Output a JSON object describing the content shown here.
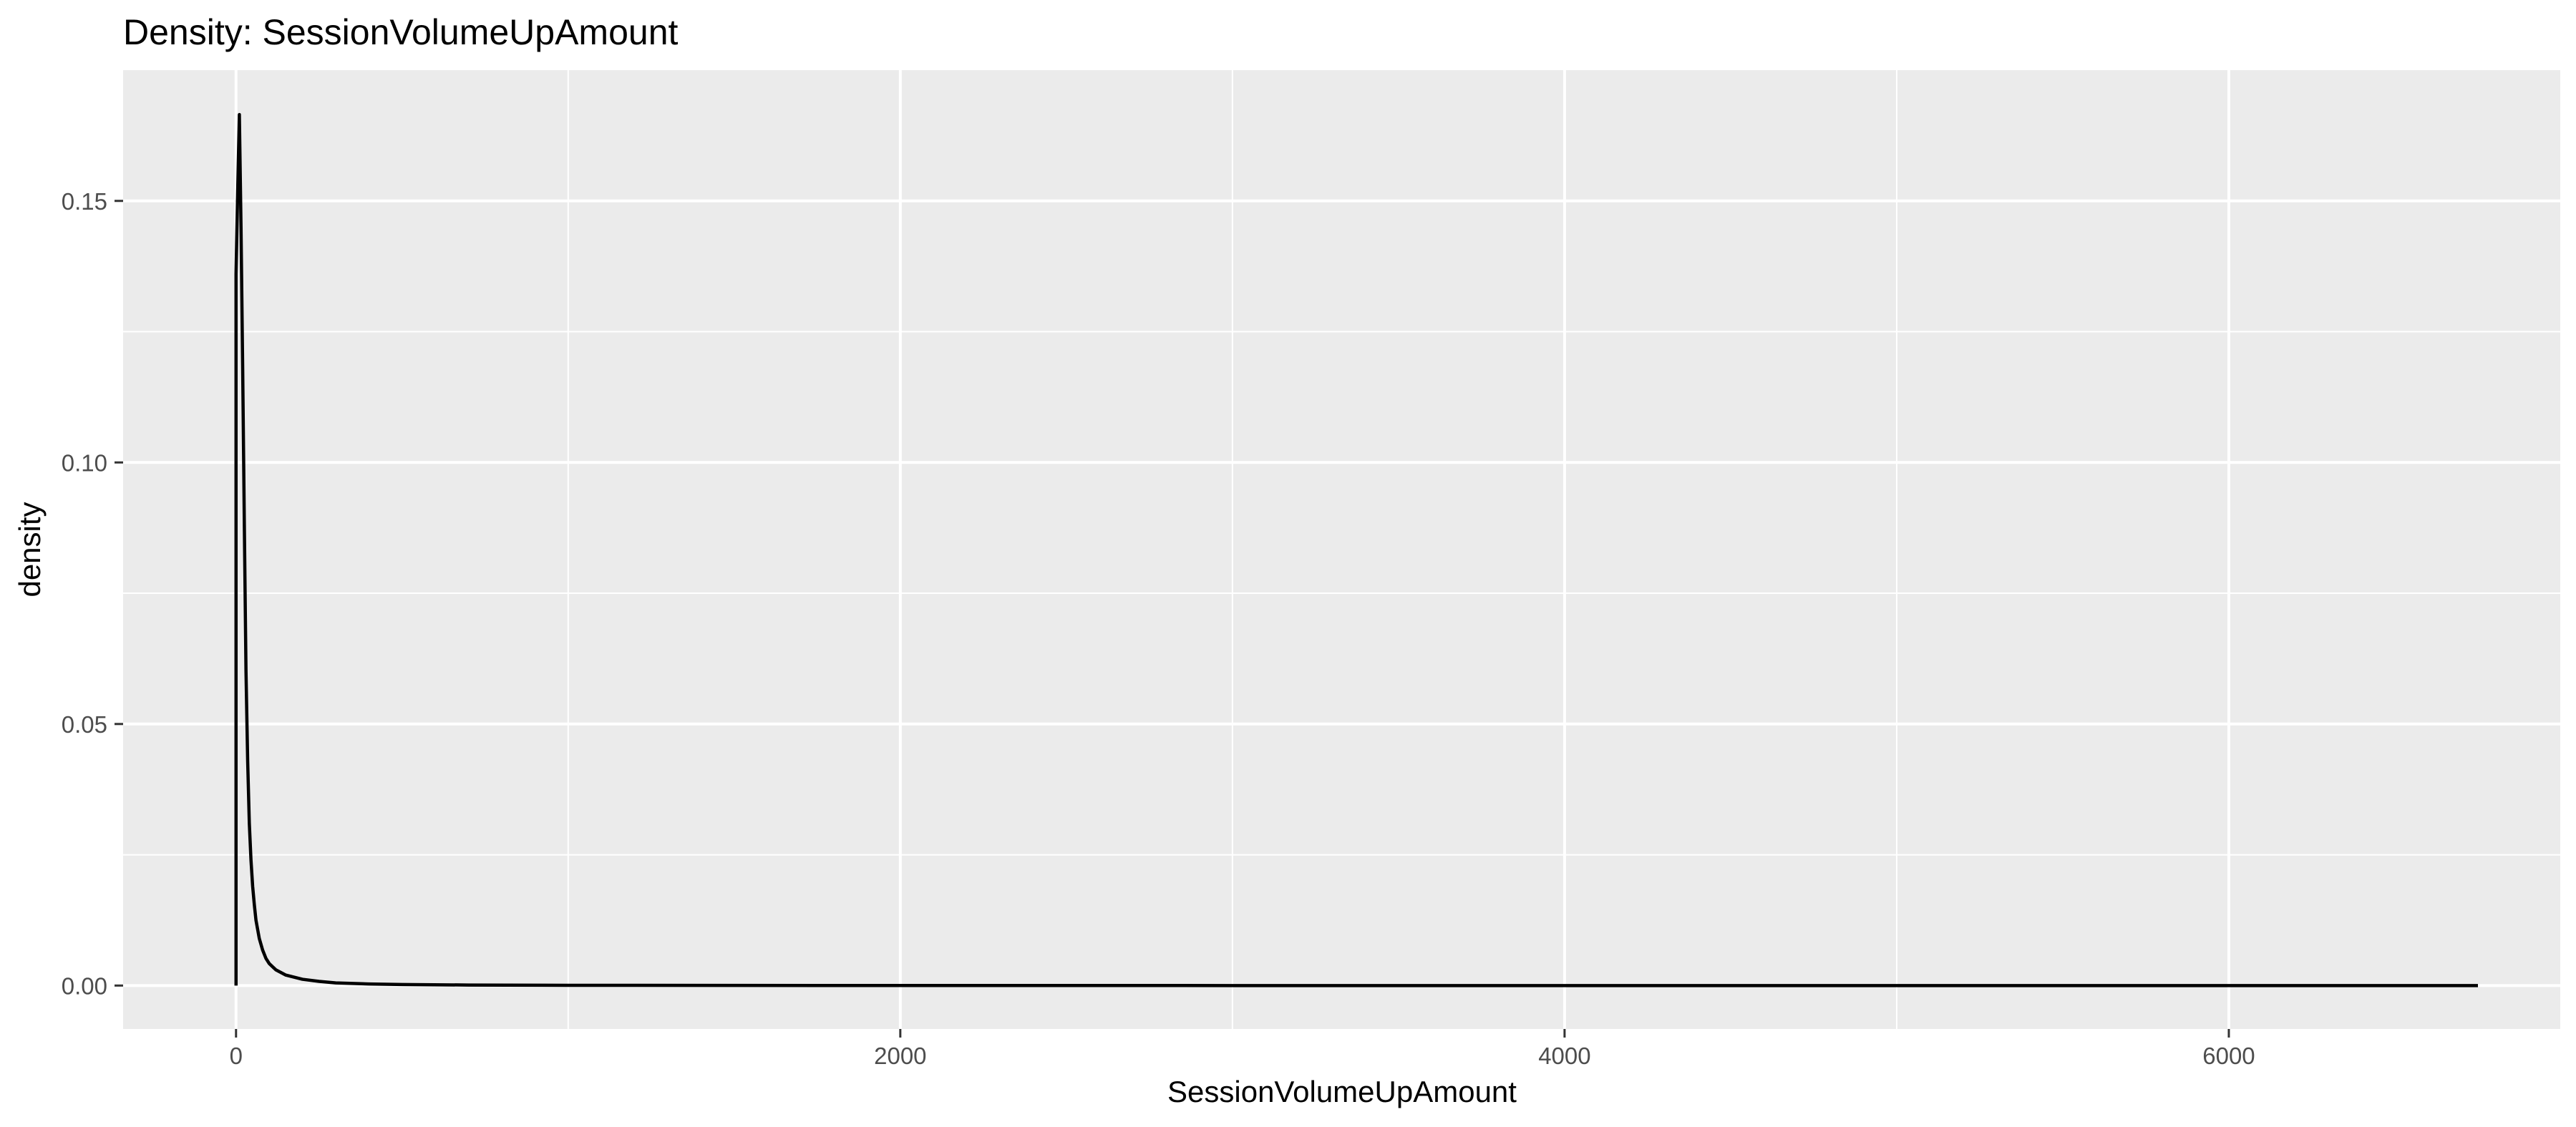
{
  "chart_data": {
    "type": "line",
    "title": "Density: SessionVolumeUpAmount",
    "xlabel": "SessionVolumeUpAmount",
    "ylabel": "density",
    "xlim": [
      -340,
      7000
    ],
    "ylim": [
      -0.0083,
      0.175
    ],
    "x_ticks": [
      0,
      2000,
      4000,
      6000
    ],
    "x_tick_labels": [
      "0",
      "2000",
      "4000",
      "6000"
    ],
    "x_minor_ticks": [
      1000,
      3000,
      5000,
      7000
    ],
    "y_ticks": [
      0.0,
      0.05,
      0.1,
      0.15
    ],
    "y_tick_labels": [
      "0.00",
      "0.05",
      "0.10",
      "0.15"
    ],
    "y_minor_ticks": [
      0.025,
      0.075,
      0.125
    ],
    "grid": true,
    "background": "#ebebeb",
    "grid_color": "#ffffff",
    "line_color": "#000000",
    "series": [
      {
        "x": [
          0,
          0,
          5,
          10,
          15,
          20,
          25,
          30,
          35,
          40,
          45,
          50,
          55,
          60,
          70,
          80,
          90,
          100,
          120,
          150,
          200,
          250,
          300,
          400,
          500,
          700,
          1000,
          1500,
          2000,
          3000,
          4000,
          5000,
          6000,
          6750,
          6750
        ],
        "y": [
          0.0,
          0.136,
          0.152,
          0.1665,
          0.145,
          0.118,
          0.088,
          0.06,
          0.043,
          0.031,
          0.024,
          0.019,
          0.0155,
          0.0125,
          0.009,
          0.0068,
          0.0052,
          0.0042,
          0.003,
          0.002,
          0.0012,
          0.0008,
          0.0005,
          0.0003,
          0.0002,
          0.0001,
          5e-05,
          2e-05,
          1e-05,
          0.0,
          0.0,
          0.0,
          0.0,
          0.0,
          0.0
        ]
      }
    ]
  }
}
